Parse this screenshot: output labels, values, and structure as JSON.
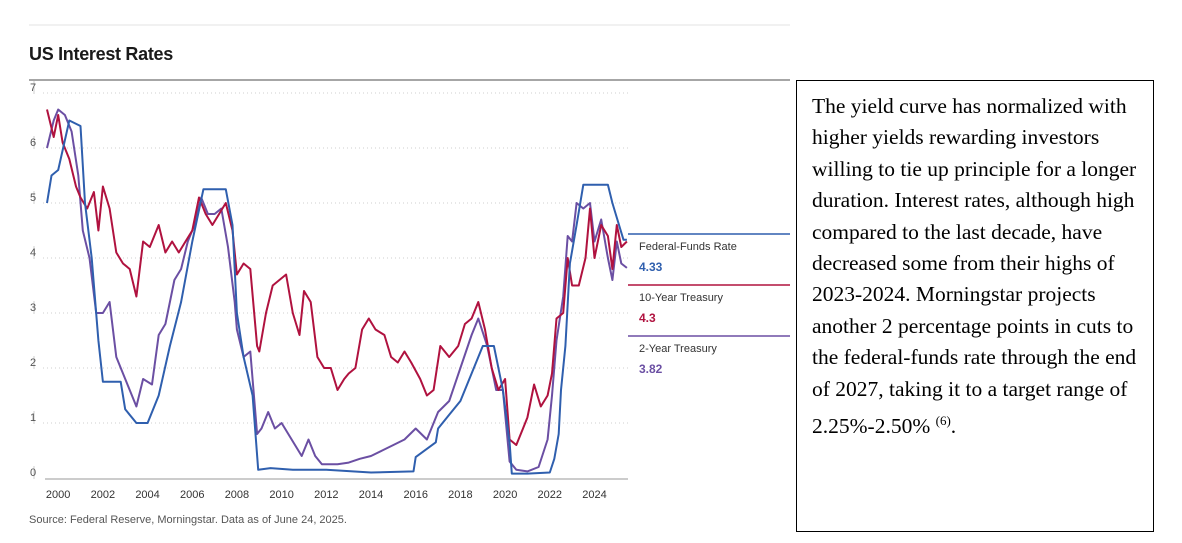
{
  "title": "US Interest Rates",
  "source": "Source: Federal Reserve, Morningstar. Data as of June 24, 2025.",
  "textbox": {
    "text": "The yield curve has normalized with higher yields rewarding investors willing to tie up principle for a longer duration. Interest rates, although high compared to the last decade, have decreased some from their highs of 2023-2024. Morningstar projects another 2 percentage points in cuts to the federal-funds rate through the end of 2027, taking it to a target range of 2.25%-2.50% ",
    "footnote": "(6)",
    "end": "."
  },
  "colors": {
    "fed": "#2f5fae",
    "ten": "#b0123f",
    "two": "#6b4fa3"
  },
  "chart_data": {
    "type": "line",
    "title": "US Interest Rates",
    "xlim": [
      1999.5,
      2025.5
    ],
    "ylim": [
      0,
      7
    ],
    "x_ticks": [
      2000,
      2002,
      2004,
      2006,
      2008,
      2010,
      2012,
      2014,
      2016,
      2018,
      2020,
      2022,
      2024
    ],
    "y_ticks": [
      0,
      1,
      2,
      3,
      4,
      5,
      6,
      7
    ],
    "grid": true,
    "legend": "right",
    "series": [
      {
        "name": "Federal-Funds Rate",
        "latest": "4.33",
        "color_key": "fed",
        "x": [
          1999.5,
          1999.7,
          2000.0,
          2000.5,
          2001.0,
          2001.2,
          2001.5,
          2001.8,
          2002.0,
          2002.8,
          2003.0,
          2003.5,
          2004.0,
          2004.5,
          2005.0,
          2005.5,
          2006.0,
          2006.5,
          2007.0,
          2007.5,
          2007.8,
          2008.0,
          2008.3,
          2008.7,
          2008.95,
          2009.5,
          2010.5,
          2012.0,
          2014.0,
          2015.9,
          2016.0,
          2016.9,
          2017.0,
          2017.5,
          2018.0,
          2018.5,
          2019.0,
          2019.5,
          2019.7,
          2019.9,
          2020.2,
          2020.3,
          2021.0,
          2022.0,
          2022.2,
          2022.4,
          2022.5,
          2022.7,
          2022.9,
          2023.2,
          2023.5,
          2024.6,
          2024.8,
          2024.95,
          2025.3,
          2025.45
        ],
        "y": [
          5.0,
          5.5,
          5.6,
          6.5,
          6.4,
          5.0,
          4.0,
          2.5,
          1.75,
          1.75,
          1.25,
          1.0,
          1.0,
          1.5,
          2.4,
          3.2,
          4.3,
          5.25,
          5.25,
          5.25,
          4.6,
          3.0,
          2.2,
          1.5,
          0.15,
          0.18,
          0.15,
          0.15,
          0.1,
          0.12,
          0.38,
          0.65,
          0.9,
          1.15,
          1.4,
          1.9,
          2.4,
          2.4,
          2.0,
          1.6,
          0.65,
          0.08,
          0.08,
          0.1,
          0.35,
          0.8,
          1.6,
          2.4,
          3.9,
          4.6,
          5.33,
          5.33,
          5.0,
          4.8,
          4.33,
          4.33
        ]
      },
      {
        "name": "10-Year Treasury",
        "latest": "4.3",
        "color_key": "ten",
        "x": [
          1999.5,
          1999.8,
          2000.0,
          2000.2,
          2000.5,
          2000.8,
          2001.0,
          2001.3,
          2001.6,
          2001.8,
          2002.0,
          2002.3,
          2002.6,
          2002.9,
          2003.2,
          2003.5,
          2003.8,
          2004.1,
          2004.5,
          2004.8,
          2005.1,
          2005.4,
          2005.7,
          2006.0,
          2006.3,
          2006.6,
          2006.9,
          2007.2,
          2007.5,
          2007.8,
          2008.0,
          2008.3,
          2008.6,
          2008.9,
          2009.0,
          2009.3,
          2009.6,
          2009.9,
          2010.2,
          2010.5,
          2010.8,
          2011.0,
          2011.3,
          2011.6,
          2011.9,
          2012.2,
          2012.5,
          2012.8,
          2013.0,
          2013.3,
          2013.6,
          2013.9,
          2014.2,
          2014.6,
          2014.9,
          2015.2,
          2015.5,
          2015.8,
          2016.2,
          2016.5,
          2016.8,
          2017.1,
          2017.5,
          2017.9,
          2018.2,
          2018.5,
          2018.8,
          2019.1,
          2019.4,
          2019.7,
          2020.0,
          2020.2,
          2020.5,
          2020.8,
          2021.0,
          2021.3,
          2021.6,
          2021.9,
          2022.1,
          2022.3,
          2022.6,
          2022.8,
          2023.0,
          2023.3,
          2023.6,
          2023.8,
          2024.0,
          2024.3,
          2024.6,
          2024.8,
          2025.0,
          2025.2,
          2025.45
        ],
        "y": [
          6.7,
          6.2,
          6.6,
          6.1,
          5.8,
          5.3,
          5.1,
          4.9,
          5.2,
          4.5,
          5.3,
          4.9,
          4.1,
          3.9,
          3.8,
          3.3,
          4.3,
          4.2,
          4.6,
          4.1,
          4.3,
          4.1,
          4.3,
          4.5,
          5.1,
          4.8,
          4.6,
          4.8,
          5.0,
          4.5,
          3.7,
          3.9,
          3.8,
          2.4,
          2.3,
          3.0,
          3.5,
          3.6,
          3.7,
          3.0,
          2.6,
          3.4,
          3.2,
          2.2,
          2.0,
          2.0,
          1.6,
          1.8,
          1.9,
          2.0,
          2.7,
          2.9,
          2.7,
          2.6,
          2.2,
          2.1,
          2.3,
          2.1,
          1.8,
          1.5,
          1.6,
          2.4,
          2.2,
          2.4,
          2.8,
          2.9,
          3.2,
          2.7,
          2.0,
          1.6,
          1.8,
          0.7,
          0.6,
          0.9,
          1.1,
          1.7,
          1.3,
          1.5,
          1.9,
          2.9,
          3.0,
          4.0,
          3.5,
          3.5,
          4.0,
          4.9,
          4.0,
          4.6,
          4.4,
          3.8,
          4.6,
          4.2,
          4.3
        ]
      },
      {
        "name": "2-Year Treasury",
        "latest": "3.82",
        "color_key": "two",
        "x": [
          1999.5,
          1999.8,
          2000.0,
          2000.3,
          2000.6,
          2000.9,
          2001.1,
          2001.4,
          2001.7,
          2002.0,
          2002.3,
          2002.6,
          2002.9,
          2003.2,
          2003.5,
          2003.8,
          2004.2,
          2004.5,
          2004.8,
          2005.2,
          2005.5,
          2005.8,
          2006.1,
          2006.4,
          2006.7,
          2007.0,
          2007.3,
          2007.6,
          2007.9,
          2008.0,
          2008.3,
          2008.6,
          2008.9,
          2009.1,
          2009.4,
          2009.7,
          2010.0,
          2010.3,
          2010.6,
          2010.9,
          2011.2,
          2011.5,
          2011.8,
          2012.5,
          2013.0,
          2013.5,
          2014.0,
          2014.5,
          2015.0,
          2015.5,
          2016.0,
          2016.5,
          2017.0,
          2017.5,
          2018.0,
          2018.5,
          2018.8,
          2019.2,
          2019.6,
          2019.9,
          2020.2,
          2020.5,
          2021.0,
          2021.5,
          2021.9,
          2022.1,
          2022.3,
          2022.6,
          2022.8,
          2023.0,
          2023.2,
          2023.5,
          2023.8,
          2024.0,
          2024.3,
          2024.6,
          2024.8,
          2025.0,
          2025.2,
          2025.45
        ],
        "y": [
          6.0,
          6.5,
          6.7,
          6.6,
          6.3,
          5.5,
          4.5,
          4.0,
          3.0,
          3.0,
          3.2,
          2.2,
          1.9,
          1.6,
          1.3,
          1.8,
          1.7,
          2.6,
          2.8,
          3.6,
          3.8,
          4.3,
          4.6,
          5.1,
          4.8,
          4.8,
          4.9,
          4.2,
          3.2,
          2.7,
          2.2,
          2.3,
          0.8,
          0.9,
          1.2,
          0.9,
          1.0,
          0.8,
          0.6,
          0.4,
          0.7,
          0.4,
          0.25,
          0.25,
          0.28,
          0.35,
          0.4,
          0.5,
          0.6,
          0.7,
          0.9,
          0.7,
          1.2,
          1.4,
          2.0,
          2.6,
          2.9,
          2.4,
          1.6,
          1.6,
          0.3,
          0.15,
          0.12,
          0.2,
          0.7,
          1.5,
          2.5,
          3.3,
          4.4,
          4.3,
          5.0,
          4.9,
          5.0,
          4.3,
          4.7,
          4.0,
          3.6,
          4.3,
          3.9,
          3.82
        ]
      }
    ]
  }
}
